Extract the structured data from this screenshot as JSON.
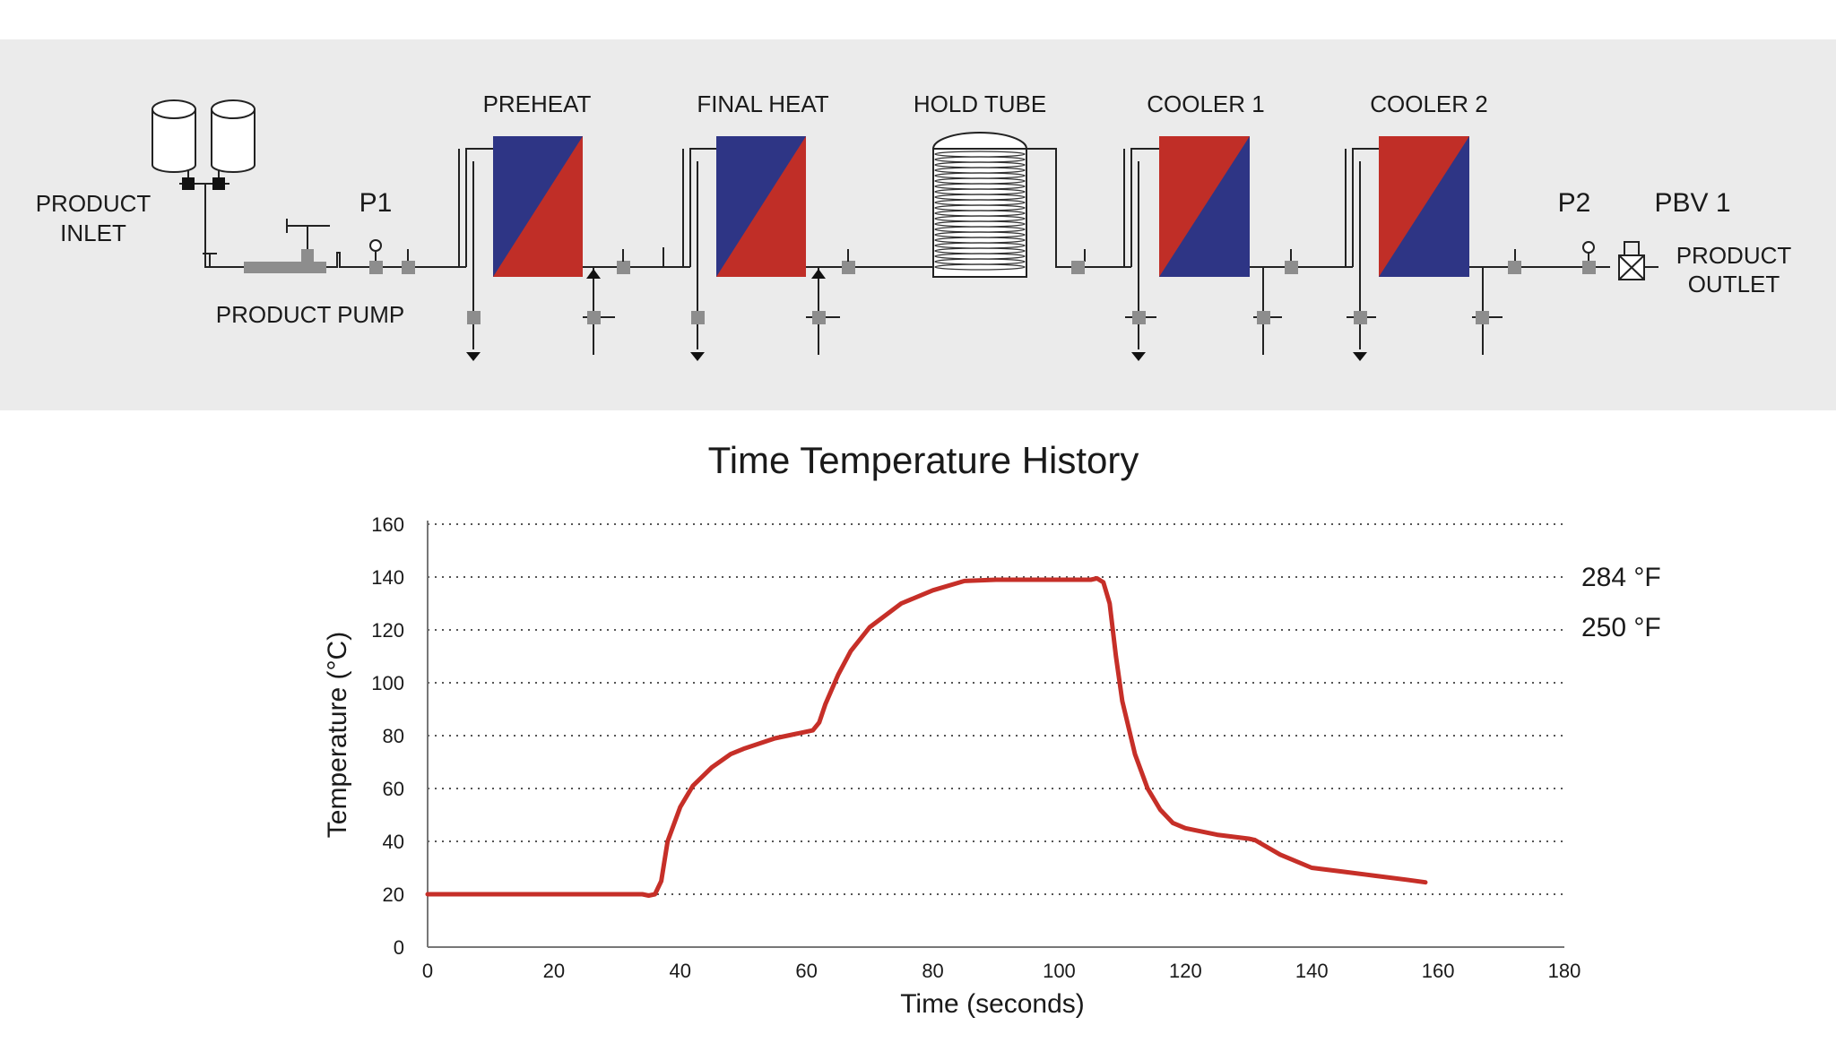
{
  "diagram": {
    "background": "#ebebeb",
    "heat_color": "#c02e27",
    "cool_color": "#2e3585",
    "labels": {
      "product_inlet": [
        "PRODUCT",
        "INLET"
      ],
      "product_pump": "PRODUCT PUMP",
      "p1": "P1",
      "preheat": "PREHEAT",
      "final_heat": "FINAL HEAT",
      "hold_tube": "HOLD TUBE",
      "cooler1": "COOLER 1",
      "cooler2": "COOLER 2",
      "p2": "P2",
      "pbv1": "PBV 1",
      "product_outlet": [
        "PRODUCT",
        "OUTLET"
      ]
    }
  },
  "chart_data": {
    "type": "line",
    "title": "Time Temperature History",
    "xlabel": "Time (seconds)",
    "ylabel": "Temperature (°C)",
    "xlim": [
      0,
      180
    ],
    "ylim": [
      0,
      160
    ],
    "xticks": [
      0,
      20,
      40,
      60,
      80,
      100,
      120,
      140,
      160,
      180
    ],
    "yticks": [
      0,
      20,
      40,
      60,
      80,
      100,
      120,
      140,
      160
    ],
    "grid": "horizontal dotted",
    "line_color": "#c62f28",
    "annotations": [
      {
        "text": "284 °F",
        "y": 140
      },
      {
        "text": "250 °F",
        "y": 121
      }
    ],
    "series": [
      {
        "x": [
          0,
          10,
          20,
          30,
          34,
          35,
          36,
          37,
          38,
          40,
          42,
          45,
          48,
          50,
          55,
          58,
          61,
          62,
          63,
          65,
          67,
          70,
          75,
          80,
          85,
          90,
          100,
          105,
          106,
          107,
          108,
          109,
          110,
          112,
          114,
          116,
          118,
          120,
          125,
          130,
          131,
          135,
          140,
          145,
          150,
          155,
          158
        ],
        "y": [
          20,
          20,
          20,
          20,
          20,
          19.5,
          20,
          25,
          40,
          53,
          61,
          68,
          73,
          75,
          79,
          80.5,
          82,
          85,
          92,
          103,
          112,
          121,
          130,
          135,
          138.5,
          139,
          139,
          139,
          139.5,
          138,
          130,
          110,
          93,
          73,
          60,
          52,
          47,
          45,
          42.5,
          41,
          40.5,
          35,
          30,
          28.5,
          27,
          25.5,
          24.5
        ]
      }
    ]
  }
}
